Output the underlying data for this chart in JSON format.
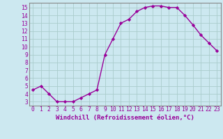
{
  "x": [
    0,
    1,
    2,
    3,
    4,
    5,
    6,
    7,
    8,
    9,
    10,
    11,
    12,
    13,
    14,
    15,
    16,
    17,
    18,
    19,
    20,
    21,
    22,
    23
  ],
  "y": [
    4.5,
    5.0,
    4.0,
    3.0,
    3.0,
    3.0,
    3.5,
    4.0,
    4.5,
    9.0,
    11.0,
    13.0,
    13.5,
    14.5,
    15.0,
    15.2,
    15.2,
    15.0,
    15.0,
    14.0,
    12.8,
    11.5,
    10.5,
    9.5
  ],
  "line_color": "#990099",
  "marker": "D",
  "marker_size": 2.2,
  "xlabel": "Windchill (Refroidissement éolien,°C)",
  "xlabel_fontsize": 6.5,
  "ytick_labels": [
    "3",
    "4",
    "5",
    "6",
    "7",
    "8",
    "9",
    "10",
    "11",
    "12",
    "13",
    "14",
    "15"
  ],
  "ytick_vals": [
    3,
    4,
    5,
    6,
    7,
    8,
    9,
    10,
    11,
    12,
    13,
    14,
    15
  ],
  "xtick_labels": [
    "0",
    "1",
    "2",
    "3",
    "4",
    "5",
    "6",
    "7",
    "8",
    "9",
    "10",
    "11",
    "12",
    "13",
    "14",
    "15",
    "16",
    "17",
    "18",
    "19",
    "20",
    "21",
    "22",
    "23"
  ],
  "xlim": [
    -0.5,
    23.5
  ],
  "ylim": [
    2.5,
    15.6
  ],
  "bg_color": "#cce8f0",
  "grid_color": "#aacccc",
  "tick_fontsize": 5.8,
  "line_width": 1.0,
  "tick_color": "#990099",
  "label_color": "#990099",
  "spine_color": "#888888"
}
